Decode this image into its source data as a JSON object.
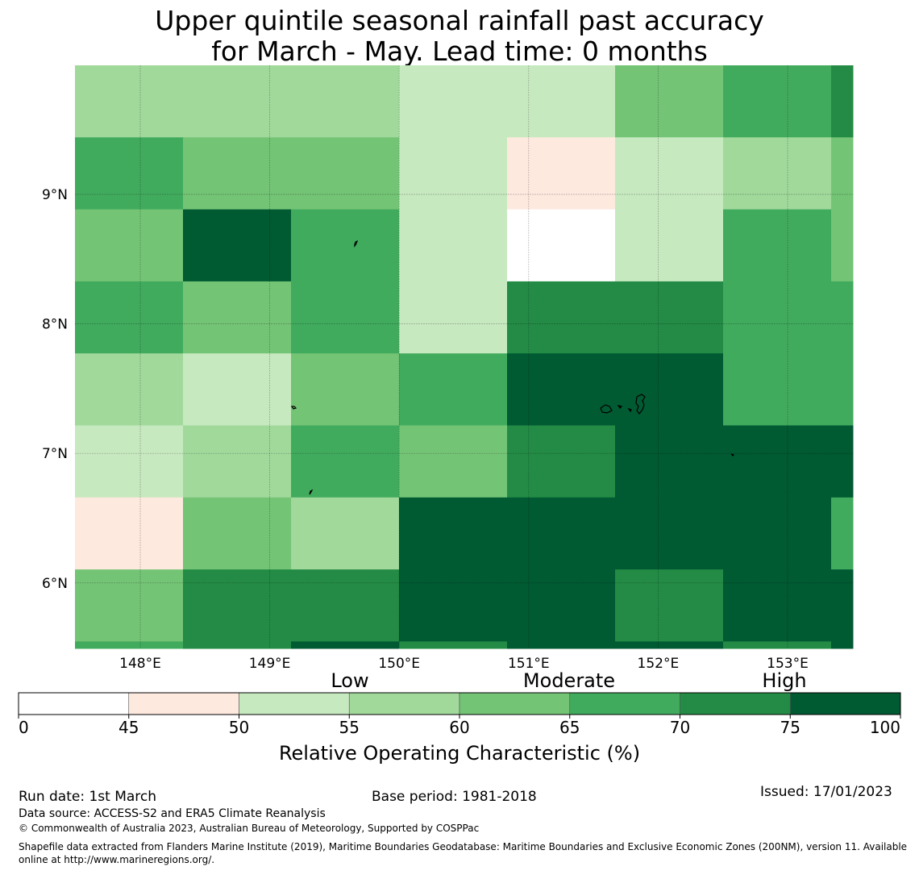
{
  "title_line1": "Upper quintile seasonal rainfall past accuracy",
  "title_line2": "for March - May. Lead time: 0 months",
  "map": {
    "lon_labels": [
      "148°E",
      "149°E",
      "150°E",
      "151°E",
      "152°E",
      "153°E"
    ],
    "lat_labels": [
      "9°N",
      "8°N",
      "7°N",
      "6°N"
    ],
    "lon_grid": [
      148,
      149,
      150,
      151,
      152,
      153
    ],
    "lat_grid": [
      9,
      8,
      7,
      6
    ],
    "cell_colors": [
      [
        "#a1d99b",
        "#a1d99b",
        "#a1d99b",
        "#c7e9c0",
        "#c7e9c0",
        "#74c476",
        "#41ab5d",
        "#238b45"
      ],
      [
        "#41ab5d",
        "#74c476",
        "#74c476",
        "#c7e9c0",
        "#fee9df",
        "#c7e9c0",
        "#a1d99b",
        "#74c476"
      ],
      [
        "#74c476",
        "#005a32",
        "#41ab5d",
        "#c7e9c0",
        "#ffffff",
        "#c7e9c0",
        "#41ab5d",
        "#74c476"
      ],
      [
        "#41ab5d",
        "#74c476",
        "#41ab5d",
        "#c7e9c0",
        "#238b45",
        "#238b45",
        "#41ab5d",
        "#41ab5d"
      ],
      [
        "#a1d99b",
        "#c7e9c0",
        "#74c476",
        "#41ab5d",
        "#005a32",
        "#005a32",
        "#41ab5d",
        "#41ab5d"
      ],
      [
        "#c7e9c0",
        "#a1d99b",
        "#41ab5d",
        "#74c476",
        "#238b45",
        "#005a32",
        "#005a32",
        "#005a32"
      ],
      [
        "#fee9df",
        "#74c476",
        "#a1d99b",
        "#005a32",
        "#005a32",
        "#005a32",
        "#005a32",
        "#41ab5d"
      ],
      [
        "#74c476",
        "#238b45",
        "#238b45",
        "#005a32",
        "#005a32",
        "#238b45",
        "#005a32",
        "#005a32"
      ],
      [
        "#41ab5d",
        "#238b45",
        "#005a32",
        "#238b45",
        "#005a32",
        "#005a32",
        "#238b45",
        "#005a32"
      ]
    ]
  },
  "legend": {
    "categories": [
      "Low",
      "Moderate",
      "High"
    ],
    "ticks": [
      "0",
      "45",
      "50",
      "55",
      "60",
      "65",
      "70",
      "75",
      "100"
    ],
    "colors": [
      "#ffffff",
      "#fee9df",
      "#c7e9c0",
      "#a1d99b",
      "#74c476",
      "#41ab5d",
      "#238b45",
      "#005a32"
    ],
    "xlabel": "Relative Operating Characteristic (%)"
  },
  "footer": {
    "run_date": "Run date: 1st March",
    "base_period": "Base period: 1981-2018",
    "issued": "Issued: 17/01/2023",
    "data_source": "Data source: ACCESS-S2 and ERA5 Climate Reanalysis",
    "copyright": "© Commonwealth of Australia 2023, Australian Bureau of Meteorology, Supported by COSPPac",
    "shapefile": "Shapefile data extracted from Flanders Marine Institute (2019), Maritime Boundaries Geodatabase: Maritime Boundaries and Exclusive Economic Zones (200NM), version 11. Available online at http://www.marineregions.org/."
  }
}
